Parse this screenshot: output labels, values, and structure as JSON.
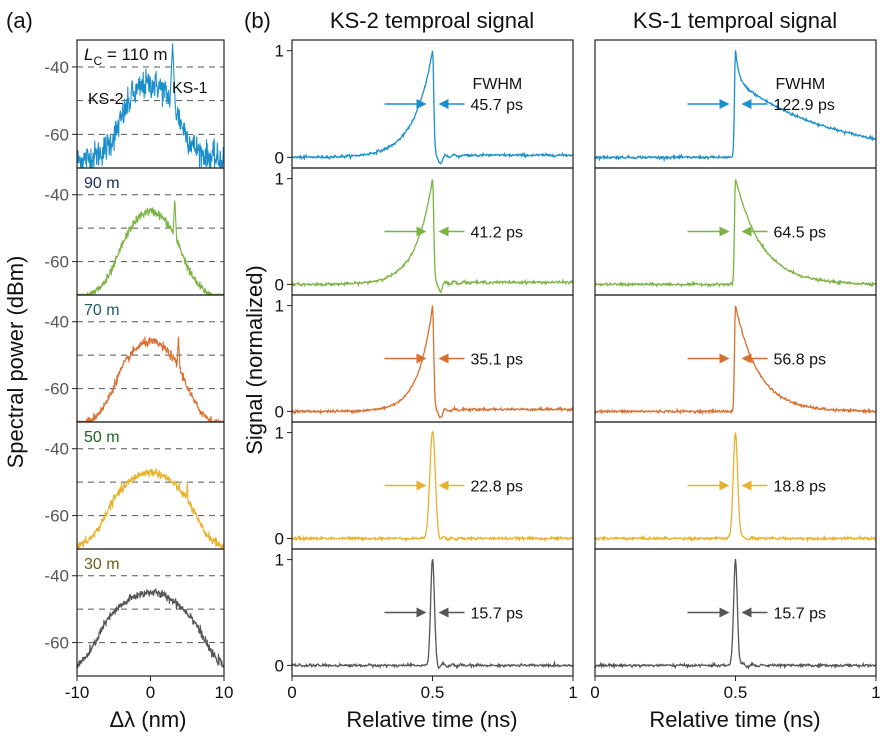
{
  "panel_labels": {
    "a": "(a)",
    "b": "(b)"
  },
  "colors": {
    "rows": [
      "#1a8fcc",
      "#7bb342",
      "#d96f30",
      "#e8b22e",
      "#555555"
    ],
    "label_colors": [
      "#111111",
      "#1e2b66",
      "#1e5b66",
      "#1e6625",
      "#66661e"
    ]
  },
  "chart_data": [
    {
      "type": "line",
      "id": "spectra",
      "title": "",
      "xlabel": "Δλ (nm)",
      "ylabel": "Spectral power (dBm)",
      "xlim": [
        -10,
        10
      ],
      "ylim": [
        -70,
        -32
      ],
      "xticks": [
        "-10",
        "0",
        "10"
      ],
      "yticks": [
        "-40",
        "-60"
      ],
      "grid": "dashed horizontal at -40, -50, -60 dBm",
      "stacked_panels": [
        {
          "label": "L_C = 110 m",
          "label_prefix": "L",
          "label_sub": "C",
          "label_rest": " = 110 m",
          "annotations": [
            "KS-2",
            "KS-1"
          ],
          "peak_dbm": -45,
          "floor_dbm": -62,
          "ks2_nm": -2.5,
          "ks1_nm": 3.0,
          "ks2_dbm": -43,
          "ks1_dbm": -33,
          "bandwidth_nm": 3.5
        },
        {
          "label": "90 m",
          "peak_dbm": -45,
          "floor_dbm": -66,
          "ks2_nm": -2.7,
          "ks1_nm": 3.3,
          "ks2_dbm": -51,
          "ks1_dbm": -41,
          "bandwidth_nm": 3.8
        },
        {
          "label": "70 m",
          "peak_dbm": -46,
          "floor_dbm": -67,
          "ks2_nm": -3.2,
          "ks1_nm": 3.8,
          "ks2_dbm": -52,
          "ks1_dbm": -44,
          "bandwidth_nm": 4.3
        },
        {
          "label": "50 m",
          "peak_dbm": -47,
          "floor_dbm": -66,
          "ks2_nm": -4.0,
          "ks1_nm": 5.0,
          "ks2_dbm": -52,
          "ks1_dbm": -50,
          "bandwidth_nm": 5.0
        },
        {
          "label": "30 m",
          "peak_dbm": -45,
          "floor_dbm": -68,
          "ks2_nm": -5.5,
          "ks1_nm": 6.0,
          "ks2_dbm": -56,
          "ks1_dbm": -56,
          "bandwidth_nm": 6.5
        }
      ]
    },
    {
      "type": "line",
      "id": "ks2_temporal",
      "title": "KS-2 temproal signal",
      "xlabel": "Relative time (ns)",
      "ylabel": "Signal (normalized)",
      "xlim": [
        0,
        1
      ],
      "ylim": [
        -0.1,
        1.1
      ],
      "xticks": [
        "0",
        "0.5",
        "1"
      ],
      "yticks": [
        "0",
        "1"
      ],
      "peak_time_ns": 0.5,
      "fwhm_header": "FWHM",
      "fwhm_ps": [
        "45.7 ps",
        "41.2 ps",
        "35.1 ps",
        "22.8 ps",
        "15.7 ps"
      ],
      "fwhm_values_ps": [
        45.7,
        41.2,
        35.1,
        22.8,
        15.7
      ]
    },
    {
      "type": "line",
      "id": "ks1_temporal",
      "title": "KS-1 temproal signal",
      "xlabel": "Relative time (ns)",
      "ylabel": "",
      "xlim": [
        0,
        1
      ],
      "ylim": [
        -0.1,
        1.1
      ],
      "xticks": [
        "0",
        "0.5",
        "1"
      ],
      "yticks": [],
      "peak_time_ns": 0.5,
      "fwhm_header": "FWHM",
      "fwhm_ps": [
        "122.9 ps",
        "64.5 ps",
        "56.8 ps",
        "18.8 ps",
        "15.7 ps"
      ],
      "fwhm_values_ps": [
        122.9,
        64.5,
        56.8,
        18.8,
        15.7
      ]
    }
  ]
}
